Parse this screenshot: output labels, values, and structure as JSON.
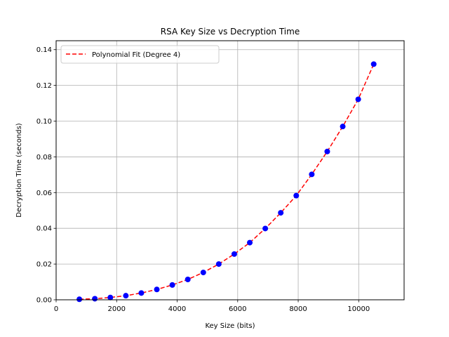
{
  "chart_data": {
    "type": "scatter",
    "title": "RSA Key Size vs Decryption Time",
    "xlabel": "Key Size (bits)",
    "ylabel": "Decryption Time (seconds)",
    "xlim": [
      0,
      11500
    ],
    "ylim": [
      0,
      0.145
    ],
    "xticks": [
      0,
      2000,
      4000,
      6000,
      8000,
      10000
    ],
    "xtick_labels": [
      "0",
      "2000",
      "4000",
      "6000",
      "8000",
      "10000"
    ],
    "yticks": [
      0,
      0.02,
      0.04,
      0.06,
      0.08,
      0.1,
      0.12,
      0.14
    ],
    "ytick_labels": [
      "0.00",
      "0.02",
      "0.04",
      "0.06",
      "0.08",
      "0.10",
      "0.12",
      "0.14"
    ],
    "grid": true,
    "legend_position": "top-left",
    "series": [
      {
        "kind": "scatter",
        "color": "#0000ff",
        "x": [
          768,
          1280,
          1792,
          2304,
          2816,
          3328,
          3840,
          4352,
          4864,
          5376,
          5888,
          6400,
          6912,
          7424,
          7936,
          8448,
          8960,
          9472,
          9984,
          10496
        ],
        "y": [
          0.0003,
          0.0006,
          0.0013,
          0.0023,
          0.0038,
          0.0058,
          0.0083,
          0.0114,
          0.0153,
          0.02,
          0.0256,
          0.032,
          0.0399,
          0.0487,
          0.0583,
          0.0702,
          0.083,
          0.097,
          0.1122,
          0.1319
        ]
      },
      {
        "kind": "line",
        "name": "Polynomial Fit (Degree 4)",
        "color": "#ff0000",
        "style": "dashed",
        "x": [
          768,
          1280,
          1792,
          2304,
          2816,
          3328,
          3840,
          4352,
          4864,
          5376,
          5888,
          6400,
          6912,
          7424,
          7936,
          8448,
          8960,
          9472,
          9984,
          10496
        ],
        "y": [
          0.0003,
          0.0006,
          0.0013,
          0.0023,
          0.0038,
          0.0058,
          0.0083,
          0.0114,
          0.0153,
          0.02,
          0.0256,
          0.032,
          0.0399,
          0.0487,
          0.0583,
          0.0702,
          0.083,
          0.097,
          0.1122,
          0.1319
        ]
      }
    ]
  }
}
